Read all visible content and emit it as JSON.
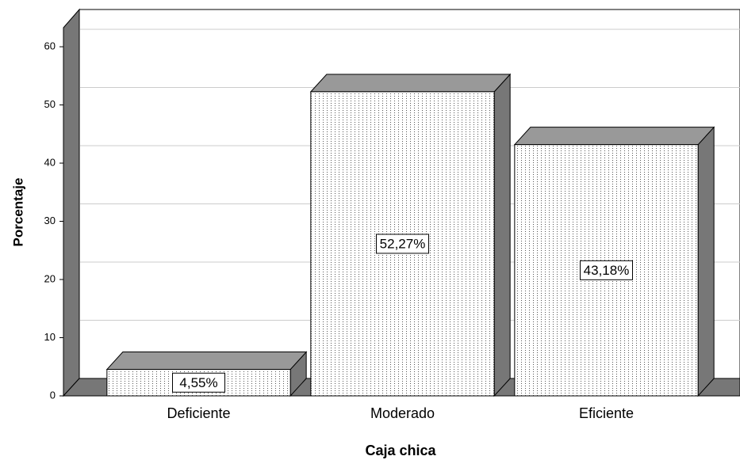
{
  "chart_data": {
    "type": "bar3d",
    "categories": [
      "Deficiente",
      "Moderado",
      "Eficiente"
    ],
    "values": [
      4.55,
      52.27,
      43.18
    ],
    "value_labels": [
      "4,55%",
      "52,27%",
      "43,18%"
    ],
    "ylabel": "Porcentaje",
    "xlabel": "Caja chica",
    "ylim": [
      0,
      63
    ],
    "yticks": [
      0,
      10,
      20,
      30,
      40,
      50,
      60
    ],
    "grid": true
  }
}
